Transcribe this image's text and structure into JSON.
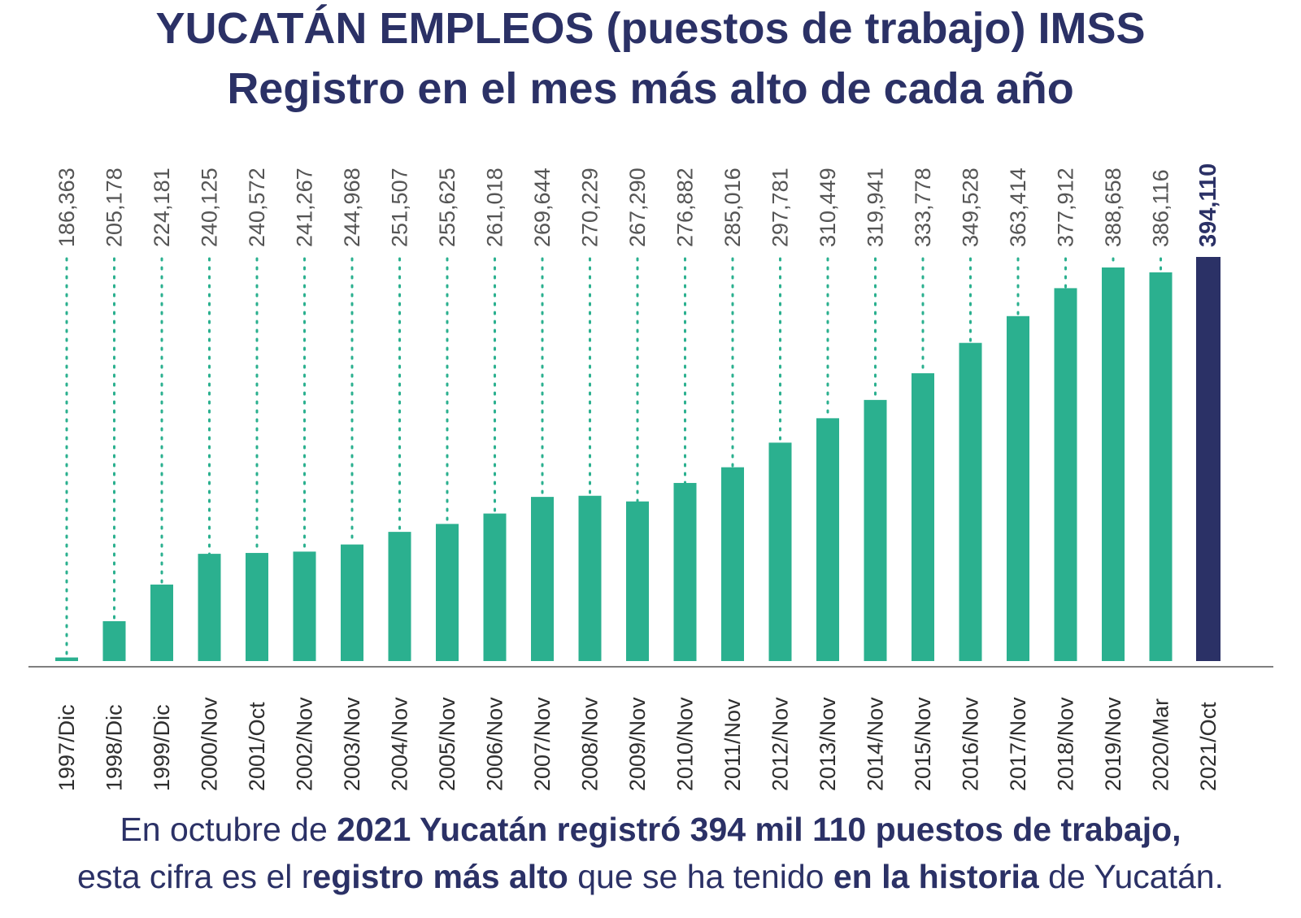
{
  "title_line1": "YUCATÁN EMPLEOS (puestos de trabajo) IMSS",
  "title_line2": "Registro en el mes más alto de cada año",
  "colors": {
    "bar": "#2bb08f",
    "highlight": "#2b3166",
    "title": "#2b3166",
    "label": "#555555",
    "axis": "#555555"
  },
  "chart_data": {
    "type": "bar",
    "title": "YUCATÁN EMPLEOS (puestos de trabajo) IMSS — Registro en el mes más alto de cada año",
    "xlabel": "",
    "ylabel": "",
    "grid": false,
    "categories": [
      "1997/Dic",
      "1998/Dic",
      "1999/Dic",
      "2000/Nov",
      "2001/Oct",
      "2002/Nov",
      "2003/Nov",
      "2004/Nov",
      "2005/Nov",
      "2006/Nov",
      "2007/Nov",
      "2008/Nov",
      "2009/Nov",
      "2010/Nov",
      "2011/Nov",
      "2012/Nov",
      "2013/Nov",
      "2014/Nov",
      "2015/Nov",
      "2016/Nov",
      "2017/Nov",
      "2018/Nov",
      "2019/Nov",
      "2020/Mar",
      "2021/Oct"
    ],
    "values": [
      186363,
      205178,
      224181,
      240125,
      240572,
      241267,
      244968,
      251507,
      255625,
      261018,
      269644,
      270229,
      267290,
      276882,
      285016,
      297781,
      310449,
      319941,
      333778,
      349528,
      363414,
      377912,
      388658,
      386116,
      394110
    ],
    "value_labels": [
      "186,363",
      "205,178",
      "224,181",
      "240,125",
      "240,572",
      "241,267",
      "244,968",
      "251,507",
      "255,625",
      "261,018",
      "269,644",
      "270,229",
      "267,290",
      "276,882",
      "285,016",
      "297,781",
      "310,449",
      "319,941",
      "333,778",
      "349,528",
      "363,414",
      "377,912",
      "388,658",
      "386,116",
      "394,110"
    ],
    "highlight_index": 24,
    "ylim": [
      184500,
      394110
    ]
  },
  "footer": {
    "l1_a": "En octubre de ",
    "l1_b": "2021 Yucatán registró 394 mil 110 puestos de trabajo,",
    "l2_a": "esta cifra es el r",
    "l2_b": "egistro más alto",
    "l2_c": " que se ha tenido ",
    "l2_d": "en la historia",
    "l2_e": " de Yucatán."
  }
}
